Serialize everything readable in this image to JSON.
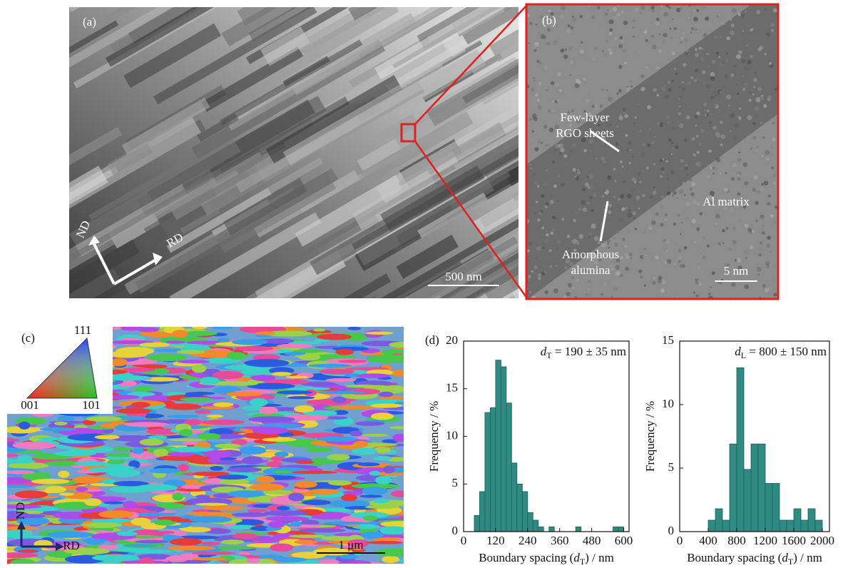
{
  "panels": {
    "a": {
      "label": "(a)",
      "nd": "ND",
      "rd": "RD",
      "scale": "500 nm"
    },
    "b": {
      "label": "(b)",
      "rgo_1": "Few-layer",
      "rgo_2": "RGO sheets",
      "amorphous_1": "Amorphous",
      "amorphous_2": "alumina",
      "matrix": "Al matrix",
      "scale": "5 nm"
    },
    "c": {
      "label": "(c)",
      "pole_111": "111",
      "pole_001": "001",
      "pole_101": "101",
      "nd": "ND",
      "rd": "RD",
      "scale": "1 μm"
    },
    "d": {
      "label": "(d)"
    }
  },
  "chart_data": [
    {
      "type": "histogram",
      "color": "#2f8a84",
      "annotation": {
        "symbol": "d",
        "subscript": "T",
        "text": " = 190 ± 35 nm"
      },
      "xlabel": {
        "prefix": "Boundary spacing (",
        "symbol": "d",
        "subscript": "T",
        "suffix": ") / nm"
      },
      "ylabel": "Frequency / %",
      "bins": [
        40,
        60,
        80,
        100,
        120,
        140,
        160,
        180,
        200,
        220,
        240,
        260,
        280,
        300,
        320,
        340,
        360,
        380,
        400,
        420,
        440,
        460,
        480,
        500,
        520,
        540,
        560,
        580,
        600
      ],
      "values": [
        1.7,
        4.2,
        12.5,
        13,
        18,
        17.3,
        13.5,
        7.2,
        5,
        4.2,
        2,
        1.2,
        0.5,
        0,
        0.5,
        0,
        0,
        0,
        0,
        0.5,
        0,
        0,
        0,
        0,
        0,
        0,
        0.5,
        0.5
      ],
      "xlim": [
        0,
        620
      ],
      "xticks": [
        0,
        120,
        240,
        360,
        480,
        600
      ],
      "ylim": [
        0,
        20
      ],
      "yticks": [
        0,
        5,
        10,
        15,
        20
      ]
    },
    {
      "type": "histogram",
      "color": "#2f8a84",
      "annotation": {
        "symbol": "d",
        "subscript": "L",
        "text": " = 800 ± 150 nm"
      },
      "xlabel": {
        "prefix": "Boundary spacing (",
        "symbol": "d",
        "subscript": "T",
        "suffix": ") / nm"
      },
      "ylabel": "Frequency / %",
      "bins": [
        400,
        500,
        600,
        700,
        800,
        900,
        1000,
        1100,
        1200,
        1300,
        1400,
        1500,
        1600,
        1700,
        1800,
        1900,
        2000
      ],
      "values": [
        0.9,
        1.8,
        0.9,
        6.9,
        12.9,
        4.9,
        6.9,
        6.9,
        3.8,
        3.8,
        0.9,
        0.9,
        1.8,
        0.9,
        1.8,
        0.9
      ],
      "xlim": [
        0,
        2100
      ],
      "xticks": [
        0,
        400,
        800,
        1200,
        1600,
        2000
      ],
      "ylim": [
        0,
        15
      ],
      "yticks": [
        0,
        5,
        10,
        15
      ]
    }
  ]
}
